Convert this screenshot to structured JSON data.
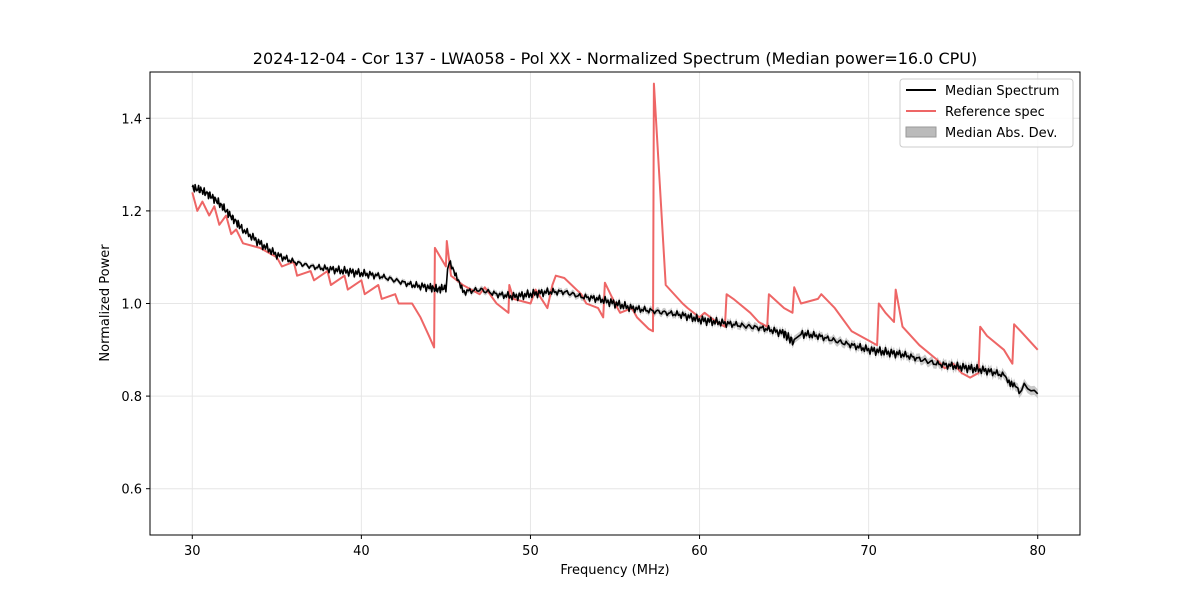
{
  "chart_data": {
    "type": "line",
    "title": "2024-12-04 - Cor 137 - LWA058 - Pol XX - Normalized Spectrum (Median power=16.0 CPU)",
    "xlabel": "Frequency (MHz)",
    "ylabel": "Normalized Power",
    "xlim": [
      27.5,
      82.5
    ],
    "ylim": [
      0.5,
      1.5
    ],
    "xticks": [
      30,
      40,
      50,
      60,
      70,
      80
    ],
    "yticks": [
      0.6,
      0.8,
      1.0,
      1.2,
      1.4
    ],
    "xtick_labels": [
      "30",
      "40",
      "50",
      "60",
      "70",
      "80"
    ],
    "ytick_labels": [
      "0.6",
      "0.8",
      "1.0",
      "1.2",
      "1.4"
    ],
    "grid": true,
    "legend_position": "top-right",
    "legend": [
      "Median Spectrum",
      "Reference spec",
      "Median Abs. Dev."
    ],
    "colors": {
      "median": "#000000",
      "reference": "#ee6666",
      "mad": "#bbbbbb"
    },
    "series": [
      {
        "name": "Median Spectrum",
        "x": [
          30,
          30.5,
          31,
          31.5,
          32,
          32.5,
          33,
          34,
          35,
          36,
          37,
          38,
          39,
          40,
          41,
          42,
          43,
          44,
          44.5,
          45,
          45.2,
          46,
          47,
          48,
          49,
          50,
          51,
          52,
          53,
          54,
          55,
          56,
          57,
          58,
          59,
          60,
          61,
          62,
          63,
          64,
          65,
          65.6,
          66,
          67,
          68,
          69,
          70,
          71,
          72,
          73,
          74,
          75,
          76,
          77,
          78,
          78.9,
          79.2,
          79.6,
          80
        ],
        "values": [
          1.25,
          1.245,
          1.235,
          1.22,
          1.2,
          1.18,
          1.16,
          1.13,
          1.105,
          1.09,
          1.08,
          1.075,
          1.07,
          1.065,
          1.06,
          1.05,
          1.04,
          1.035,
          1.03,
          1.035,
          1.095,
          1.025,
          1.03,
          1.02,
          1.015,
          1.02,
          1.025,
          1.025,
          1.015,
          1.01,
          1.0,
          0.99,
          0.985,
          0.98,
          0.975,
          0.965,
          0.96,
          0.955,
          0.95,
          0.945,
          0.935,
          0.915,
          0.935,
          0.93,
          0.92,
          0.91,
          0.9,
          0.895,
          0.89,
          0.88,
          0.87,
          0.865,
          0.86,
          0.855,
          0.845,
          0.81,
          0.835,
          0.815,
          0.805
        ]
      },
      {
        "name": "Reference spec",
        "x": [
          30,
          30.3,
          30.6,
          31,
          31.3,
          31.6,
          32,
          32.3,
          32.6,
          33,
          34,
          35,
          35.3,
          36,
          36.2,
          37,
          37.2,
          38,
          38.2,
          39,
          39.2,
          40,
          40.2,
          41,
          41.2,
          42,
          42.2,
          43,
          43.5,
          44,
          44.3,
          44.35,
          45,
          45.05,
          45.3,
          46,
          47,
          47.3,
          48,
          48.7,
          48.75,
          49,
          50,
          50.3,
          51,
          51.3,
          51.5,
          52,
          53,
          53.3,
          54,
          54.3,
          54.4,
          55,
          55.3,
          56,
          56.3,
          57,
          57.25,
          57.3,
          58,
          59,
          59.3,
          60,
          60.3,
          61,
          61.5,
          61.6,
          62,
          63,
          63.5,
          64,
          64.1,
          65,
          65.5,
          65.6,
          66,
          67,
          67.2,
          68,
          69,
          70,
          70.5,
          70.6,
          71,
          71.5,
          71.6,
          72,
          73,
          74,
          74.5,
          75,
          75.5,
          76,
          76.5,
          76.6,
          77,
          78,
          78.5,
          78.6,
          79,
          80
        ],
        "values": [
          1.24,
          1.2,
          1.22,
          1.19,
          1.21,
          1.17,
          1.19,
          1.15,
          1.16,
          1.13,
          1.12,
          1.1,
          1.08,
          1.09,
          1.06,
          1.07,
          1.05,
          1.07,
          1.04,
          1.06,
          1.03,
          1.05,
          1.02,
          1.04,
          1.01,
          1.02,
          1.0,
          1.0,
          0.97,
          0.93,
          0.905,
          1.12,
          1.08,
          1.135,
          1.06,
          1.04,
          1.02,
          1.035,
          1.0,
          0.98,
          1.04,
          1.01,
          1.0,
          1.03,
          0.99,
          1.04,
          1.06,
          1.055,
          1.02,
          1.0,
          0.99,
          0.97,
          1.045,
          1.0,
          0.98,
          0.99,
          0.97,
          0.945,
          0.94,
          1.475,
          1.04,
          1.0,
          0.99,
          0.97,
          0.98,
          0.96,
          0.95,
          1.02,
          1.01,
          0.98,
          0.96,
          0.95,
          1.02,
          0.99,
          0.98,
          1.035,
          1.0,
          1.01,
          1.02,
          0.99,
          0.94,
          0.92,
          0.91,
          1.0,
          0.98,
          0.96,
          1.03,
          0.95,
          0.91,
          0.88,
          0.86,
          0.87,
          0.85,
          0.84,
          0.85,
          0.95,
          0.93,
          0.9,
          0.87,
          0.955,
          0.94,
          0.9
        ]
      }
    ]
  }
}
